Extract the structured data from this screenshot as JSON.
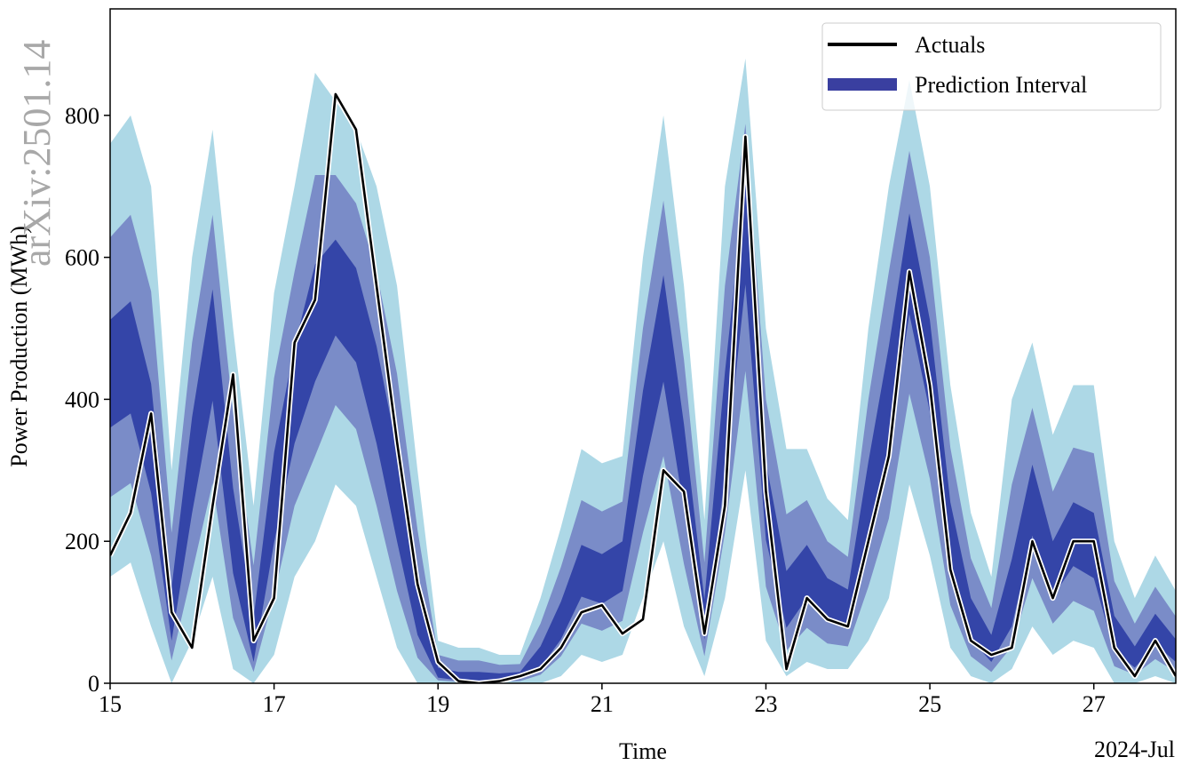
{
  "watermark": "arXiv:2501.14",
  "chart_data": {
    "type": "line",
    "xlabel": "Time",
    "ylabel": "Power Production (MWh)",
    "x_offset_label": "2024-Jul",
    "legend": "upper right",
    "xlim": [
      15,
      28
    ],
    "xticks": [
      15,
      17,
      19,
      21,
      23,
      25,
      27
    ],
    "ylim": [
      0,
      950
    ],
    "yticks": [
      0,
      200,
      400,
      600,
      800
    ],
    "x": [
      15,
      15.25,
      15.5,
      15.75,
      16,
      16.25,
      16.5,
      16.75,
      17,
      17.25,
      17.5,
      17.75,
      18,
      18.25,
      18.5,
      18.75,
      19,
      19.25,
      19.5,
      19.75,
      20,
      20.25,
      20.5,
      20.75,
      21,
      21.25,
      21.5,
      21.75,
      22,
      22.25,
      22.5,
      22.75,
      23,
      23.25,
      23.5,
      23.75,
      24,
      24.25,
      24.5,
      24.75,
      25,
      25.25,
      25.5,
      25.75,
      26,
      26.25,
      26.5,
      26.75,
      27,
      27.25,
      27.5,
      27.75,
      28
    ],
    "series": [
      {
        "name": "Prediction Interval",
        "color": "#3a3fa0",
        "kind": "interval",
        "bands": [
          {
            "color": "#add8e6",
            "upper": [
              760,
              800,
              700,
              300,
              600,
              780,
              500,
              250,
              550,
              700,
              860,
              820,
              780,
              700,
              560,
              300,
              60,
              50,
              50,
              40,
              40,
              120,
              220,
              330,
              310,
              320,
              600,
              800,
              560,
              230,
              700,
              880,
              500,
              330,
              330,
              260,
              230,
              500,
              700,
              850,
              700,
              420,
              240,
              150,
              400,
              480,
              350,
              420,
              420,
              200,
              120,
              180,
              130
            ],
            "lower": [
              150,
              170,
              80,
              0,
              60,
              150,
              20,
              0,
              40,
              150,
              200,
              280,
              250,
              150,
              50,
              0,
              0,
              0,
              0,
              0,
              0,
              0,
              10,
              40,
              30,
              40,
              120,
              200,
              80,
              10,
              120,
              300,
              60,
              10,
              30,
              20,
              20,
              60,
              120,
              280,
              180,
              50,
              10,
              0,
              20,
              80,
              40,
              60,
              50,
              0,
              0,
              10,
              0
            ]
          },
          {
            "color": "#7a8cc8",
            "upper": [
              628,
              660,
              552,
              212,
              480,
              660,
              380,
              166,
              430,
              580,
              716,
              716,
              676,
              580,
              436,
              216,
              40,
              32,
              32,
              26,
              27,
              84,
              164,
              258,
              242,
              256,
              500,
              680,
              456,
              170,
              560,
              788,
              400,
              238,
              258,
              200,
              178,
              400,
              580,
              750,
              600,
              332,
              176,
              106,
              280,
              388,
              270,
              332,
              324,
              144,
              84,
              136,
              94
            ],
            "lower": [
              262,
              282,
              180,
              32,
              156,
              282,
              92,
              16,
              124,
              250,
              320,
              392,
              358,
              250,
              130,
              36,
              4,
              2,
              2,
              2,
              3,
              12,
              38,
              84,
              74,
              88,
              212,
              320,
              168,
              38,
              212,
              440,
              136,
              46,
              78,
              56,
              52,
              136,
              232,
              408,
              288,
              110,
              38,
              16,
              52,
              148,
              84,
              116,
              102,
              24,
              12,
              34,
              16
            ]
          },
          {
            "color": "#3445a8",
            "upper": [
              512,
              538,
              422,
              135,
              375,
              555,
              275,
              92,
              325,
              475,
              590,
              625,
              585,
              475,
              328,
              142,
              22,
              16,
              16,
              14,
              16,
              52,
              115,
              195,
              182,
              200,
              412,
              575,
              365,
              118,
              438,
              708,
              312,
              158,
              195,
              148,
              132,
              312,
              475,
              662,
              512,
              255,
              120,
              68,
              175,
              308,
              200,
              255,
              240,
              95,
              52,
              98,
              62
            ],
            "lower": [
              360,
              380,
              268,
              60,
              240,
              398,
              155,
              30,
              198,
              338,
              425,
              490,
              452,
              338,
              200,
              68,
              8,
              4,
              4,
              4,
              6,
              22,
              62,
              122,
              112,
              130,
              292,
              425,
              245,
              62,
              292,
              562,
              202,
              78,
              120,
              88,
              80,
              202,
              330,
              520,
              382,
              162,
              62,
              30,
              80,
              208,
              122,
              165,
              148,
              45,
              22,
              55,
              30
            ]
          }
        ]
      },
      {
        "name": "Actuals",
        "color": "#000000",
        "values": [
          180,
          240,
          380,
          100,
          50,
          250,
          435,
          60,
          120,
          480,
          540,
          830,
          780,
          560,
          340,
          140,
          30,
          3,
          0,
          3,
          10,
          20,
          50,
          100,
          110,
          70,
          90,
          300,
          270,
          70,
          250,
          770,
          270,
          20,
          120,
          90,
          80,
          200,
          320,
          580,
          420,
          160,
          60,
          40,
          50,
          200,
          120,
          200,
          200,
          50,
          10,
          60,
          10
        ]
      }
    ]
  }
}
